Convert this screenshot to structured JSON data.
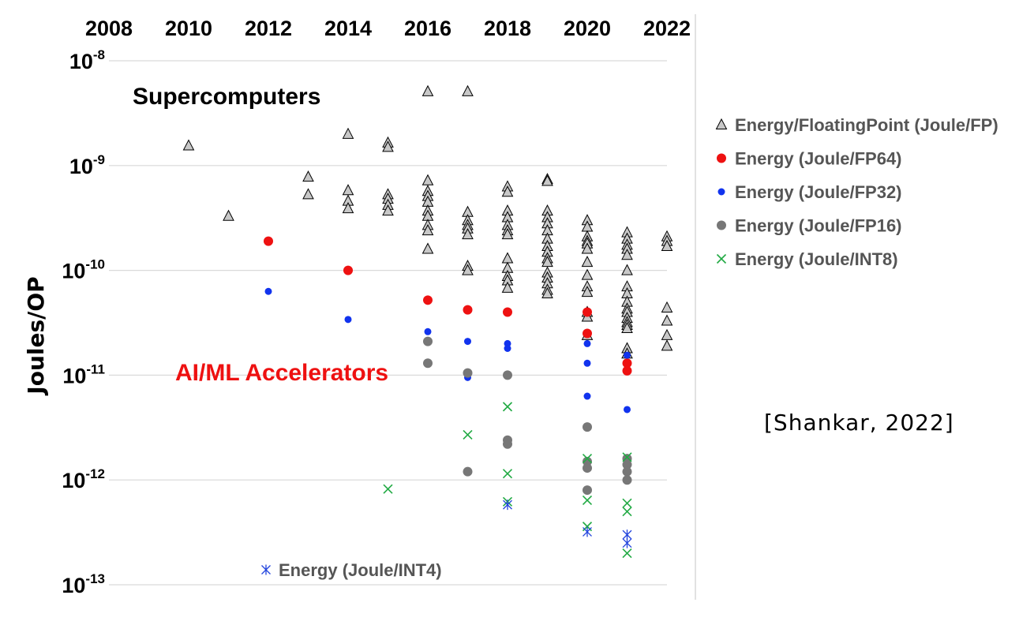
{
  "chart_data": {
    "type": "scatter",
    "title": "",
    "xlabel": "",
    "ylabel": "Joules/OP",
    "y_scale": "log",
    "xlim": [
      2008,
      2022
    ],
    "ylim_exponent": [
      -13,
      -8
    ],
    "x_ticks": [
      "2008",
      "2010",
      "2012",
      "2014",
      "2016",
      "2018",
      "2020",
      "2022"
    ],
    "y_ticks": [
      {
        "base": "10",
        "exp": "-8",
        "value": 1e-08
      },
      {
        "base": "10",
        "exp": "-9",
        "value": 1e-09
      },
      {
        "base": "10",
        "exp": "-10",
        "value": 1e-10
      },
      {
        "base": "10",
        "exp": "-11",
        "value": 1e-11
      },
      {
        "base": "10",
        "exp": "-12",
        "value": 1e-12
      },
      {
        "base": "10",
        "exp": "-13",
        "value": 1e-13
      }
    ],
    "annotations": {
      "supercomputers": "Supercomputers",
      "accelerators": "AI/ML Accelerators",
      "citation": "[Shankar, 2022]"
    },
    "series": [
      {
        "name": "Energy/FloatingPoint (Joule/FP)",
        "marker": "triangle",
        "color": "#c8c8c8",
        "points": [
          [
            2010,
            1.55e-09
          ],
          [
            2011,
            3.3e-10
          ],
          [
            2013,
            7.8e-10
          ],
          [
            2013,
            5.3e-10
          ],
          [
            2014,
            2e-09
          ],
          [
            2014,
            5.8e-10
          ],
          [
            2014,
            4.6e-10
          ],
          [
            2014,
            3.9e-10
          ],
          [
            2015,
            1.65e-09
          ],
          [
            2015,
            1.5e-09
          ],
          [
            2015,
            5.3e-10
          ],
          [
            2015,
            4.8e-10
          ],
          [
            2015,
            4.2e-10
          ],
          [
            2015,
            3.7e-10
          ],
          [
            2016,
            5.1e-09
          ],
          [
            2016,
            7.2e-10
          ],
          [
            2016,
            5.7e-10
          ],
          [
            2016,
            5.1e-10
          ],
          [
            2016,
            4.5e-10
          ],
          [
            2016,
            3.7e-10
          ],
          [
            2016,
            3.3e-10
          ],
          [
            2016,
            2.7e-10
          ],
          [
            2016,
            2.4e-10
          ],
          [
            2016,
            1.6e-10
          ],
          [
            2017,
            5.1e-09
          ],
          [
            2017,
            3.6e-10
          ],
          [
            2017,
            3e-10
          ],
          [
            2017,
            2.7e-10
          ],
          [
            2017,
            2.5e-10
          ],
          [
            2017,
            2.2e-10
          ],
          [
            2017,
            1.1e-10
          ],
          [
            2017,
            1e-10
          ],
          [
            2018,
            6.3e-10
          ],
          [
            2018,
            5.6e-10
          ],
          [
            2018,
            3.7e-10
          ],
          [
            2018,
            3.2e-10
          ],
          [
            2018,
            2.7e-10
          ],
          [
            2018,
            2.4e-10
          ],
          [
            2018,
            2.2e-10
          ],
          [
            2018,
            1.3e-10
          ],
          [
            2018,
            1.05e-10
          ],
          [
            2018,
            8.8e-11
          ],
          [
            2018,
            8e-11
          ],
          [
            2018,
            6.8e-11
          ],
          [
            2019,
            7.4e-10
          ],
          [
            2019,
            7.1e-10
          ],
          [
            2019,
            3.7e-10
          ],
          [
            2019,
            3.2e-10
          ],
          [
            2019,
            2.8e-10
          ],
          [
            2019,
            2.4e-10
          ],
          [
            2019,
            2e-10
          ],
          [
            2019,
            1.7e-10
          ],
          [
            2019,
            1.5e-10
          ],
          [
            2019,
            1.3e-10
          ],
          [
            2019,
            1.2e-10
          ],
          [
            2019,
            9.5e-11
          ],
          [
            2019,
            8.5e-11
          ],
          [
            2019,
            7.5e-11
          ],
          [
            2019,
            6.5e-11
          ],
          [
            2019,
            6e-11
          ],
          [
            2020,
            3e-10
          ],
          [
            2020,
            2.6e-10
          ],
          [
            2020,
            2.1e-10
          ],
          [
            2020,
            1.9e-10
          ],
          [
            2020,
            1.8e-10
          ],
          [
            2020,
            1.6e-10
          ],
          [
            2020,
            1.2e-10
          ],
          [
            2020,
            9e-11
          ],
          [
            2020,
            7e-11
          ],
          [
            2020,
            6.2e-11
          ],
          [
            2020,
            4e-11
          ],
          [
            2020,
            3.6e-11
          ],
          [
            2020,
            2.4e-11
          ],
          [
            2021,
            2.3e-10
          ],
          [
            2021,
            2e-10
          ],
          [
            2021,
            1.75e-10
          ],
          [
            2021,
            1.6e-10
          ],
          [
            2021,
            1.4e-10
          ],
          [
            2021,
            1e-10
          ],
          [
            2021,
            7e-11
          ],
          [
            2021,
            6e-11
          ],
          [
            2021,
            5e-11
          ],
          [
            2021,
            4.3e-11
          ],
          [
            2021,
            4e-11
          ],
          [
            2021,
            3.5e-11
          ],
          [
            2021,
            3.2e-11
          ],
          [
            2021,
            3e-11
          ],
          [
            2021,
            2.8e-11
          ],
          [
            2021,
            1.8e-11
          ],
          [
            2021,
            1.6e-11
          ],
          [
            2022,
            2.1e-10
          ],
          [
            2022,
            1.9e-10
          ],
          [
            2022,
            1.7e-10
          ],
          [
            2022,
            4.4e-11
          ],
          [
            2022,
            3.3e-11
          ],
          [
            2022,
            2.4e-11
          ],
          [
            2022,
            1.9e-11
          ]
        ]
      },
      {
        "name": "Energy (Joule/FP64)",
        "marker": "circle",
        "color": "#ee1111",
        "points": [
          [
            2012,
            1.9e-10
          ],
          [
            2014,
            1e-10
          ],
          [
            2016,
            5.2e-11
          ],
          [
            2017,
            4.2e-11
          ],
          [
            2018,
            4e-11
          ],
          [
            2020,
            4e-11
          ],
          [
            2020,
            2.5e-11
          ],
          [
            2021,
            1.3e-11
          ],
          [
            2021,
            1.1e-11
          ]
        ]
      },
      {
        "name": "Energy (Joule/FP32)",
        "marker": "dot",
        "color": "#1133ee",
        "points": [
          [
            2012,
            6.3e-11
          ],
          [
            2014,
            3.4e-11
          ],
          [
            2016,
            2.6e-11
          ],
          [
            2017,
            2.1e-11
          ],
          [
            2017,
            9.5e-12
          ],
          [
            2018,
            2e-11
          ],
          [
            2018,
            1.8e-11
          ],
          [
            2020,
            2e-11
          ],
          [
            2020,
            1.3e-11
          ],
          [
            2020,
            6.3e-12
          ],
          [
            2021,
            1.55e-11
          ],
          [
            2021,
            4.7e-12
          ]
        ]
      },
      {
        "name": "Energy (Joule/FP16)",
        "marker": "circle",
        "color": "#777777",
        "points": [
          [
            2016,
            2.1e-11
          ],
          [
            2016,
            1.3e-11
          ],
          [
            2017,
            1.05e-11
          ],
          [
            2017,
            1.2e-12
          ],
          [
            2018,
            1e-11
          ],
          [
            2018,
            2.4e-12
          ],
          [
            2018,
            2.2e-12
          ],
          [
            2020,
            3.2e-12
          ],
          [
            2020,
            1.5e-12
          ],
          [
            2020,
            1.3e-12
          ],
          [
            2020,
            8e-13
          ],
          [
            2021,
            1.6e-12
          ],
          [
            2021,
            1.4e-12
          ],
          [
            2021,
            1.2e-12
          ],
          [
            2021,
            1e-12
          ]
        ]
      },
      {
        "name": "Energy (Joule/INT8)",
        "marker": "x",
        "color": "#22aa44",
        "points": [
          [
            2015,
            8.2e-13
          ],
          [
            2017,
            2.7e-12
          ],
          [
            2018,
            5e-12
          ],
          [
            2018,
            1.15e-12
          ],
          [
            2018,
            6.2e-13
          ],
          [
            2020,
            1.6e-12
          ],
          [
            2020,
            6.4e-13
          ],
          [
            2020,
            3.6e-13
          ],
          [
            2021,
            1.65e-12
          ],
          [
            2021,
            6e-13
          ],
          [
            2021,
            5e-13
          ],
          [
            2021,
            2e-13
          ]
        ]
      },
      {
        "name": "Energy (Joule/INT4)",
        "marker": "asterisk",
        "color": "#2244dd",
        "points": [
          [
            2018,
            5.8e-13
          ],
          [
            2020,
            3.2e-13
          ],
          [
            2021,
            3e-13
          ],
          [
            2021,
            2.5e-13
          ]
        ]
      }
    ],
    "legend": [
      {
        "label": "Energy/FloatingPoint (Joule/FP)",
        "marker": "triangle",
        "color": "#c8c8c8"
      },
      {
        "label": "Energy (Joule/FP64)",
        "marker": "circle",
        "color": "#ee1111"
      },
      {
        "label": "Energy (Joule/FP32)",
        "marker": "dot",
        "color": "#1133ee"
      },
      {
        "label": "Energy (Joule/FP16)",
        "marker": "circle",
        "color": "#777777"
      },
      {
        "label": "Energy (Joule/INT8)",
        "marker": "x",
        "color": "#22aa44"
      }
    ],
    "inset_legend": {
      "label": "Energy (Joule/INT4)",
      "marker": "asterisk",
      "color": "#2244dd"
    }
  }
}
